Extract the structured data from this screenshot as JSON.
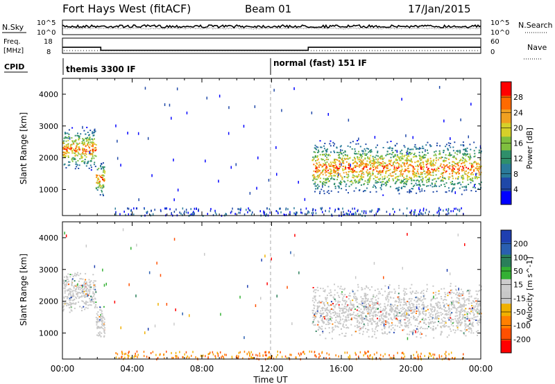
{
  "header": {
    "station": "Fort Hays West (fitACF)",
    "beam": "Beam 01",
    "date": "17/Jan/2015"
  },
  "strip_labels": {
    "nsky": "N.Sky",
    "nsearch": "N.Search",
    "freq_top": "Freq.",
    "freq_unit": "[MHz]",
    "nave": "Nave",
    "cpid": "CPID"
  },
  "strip_ticks": {
    "nsky_top": "10^5",
    "nsky_bottom": "10^0",
    "nsearch_top": "10^5",
    "nsearch_bottom": "10^0",
    "freq_top": "18",
    "freq_bottom": "8",
    "nave_top": "60",
    "nave_bottom": "0"
  },
  "cpid": {
    "modes": [
      {
        "label": "themis 3300 IF",
        "start_hour": 0.0
      },
      {
        "label": "normal (fast) 151 IF",
        "start_hour": 12.0
      }
    ]
  },
  "freq_steps": {
    "hours": [
      0,
      2.2,
      2.2,
      14.1,
      14.1,
      24
    ],
    "mhz": [
      12.0,
      12.0,
      10.0,
      10.0,
      12.0,
      12.0
    ]
  },
  "chart_data": [
    {
      "type": "heatmap",
      "name": "Power",
      "ylabel": "Slant Range [km]",
      "xlabel": "Time UT",
      "ylim": [
        180,
        4500
      ],
      "xlim": [
        0,
        24
      ],
      "yticks": [
        1000,
        2000,
        3000,
        4000
      ],
      "xticks": [
        "00:00",
        "04:00",
        "08:00",
        "12:00",
        "16:00",
        "20:00",
        "00:00"
      ],
      "colorbar": {
        "label": "Power [dB]",
        "ticks": [
          "4",
          "8",
          "12",
          "16",
          "20",
          "24",
          "28"
        ],
        "range": [
          0,
          30
        ],
        "colors": [
          "#0000ff",
          "#1f48a8",
          "#2a7a9a",
          "#2f8f6a",
          "#7fbf3f",
          "#d6d02a",
          "#f0a020",
          "#ff6a00",
          "#ff0000"
        ]
      },
      "regions": [
        {
          "t_start": 0.0,
          "t_end": 1.9,
          "r_center": 2300,
          "r_width": 700
        },
        {
          "t_start": 1.9,
          "t_end": 2.4,
          "r_center": 1350,
          "r_width": 600
        },
        {
          "t_start": 14.3,
          "t_end": 24.0,
          "r_center": 1700,
          "r_width": 900
        }
      ]
    },
    {
      "type": "heatmap",
      "name": "Velocity",
      "ylabel": "Slant Range [km]",
      "xlabel": "Time UT",
      "ylim": [
        180,
        4500
      ],
      "xlim": [
        0,
        24
      ],
      "yticks": [
        1000,
        2000,
        3000,
        4000
      ],
      "xticks": [
        "00:00",
        "04:00",
        "08:00",
        "12:00",
        "16:00",
        "20:00",
        "00:00"
      ],
      "colorbar": {
        "label": "Velocity [m s^-1]",
        "ticks": [
          "200",
          "100",
          "50",
          "15",
          "-15",
          "-50",
          "-100",
          "-200"
        ],
        "range": [
          -250,
          250
        ],
        "colors": [
          "#1f3fb0",
          "#2a5fb0",
          "#2a7f5a",
          "#33b033",
          "#cccccc",
          "#c8c8c8",
          "#f0b000",
          "#ff8000",
          "#ff5000",
          "#ff0000"
        ]
      },
      "regions": [
        {
          "t_start": 0.0,
          "t_end": 1.9,
          "r_center": 2300,
          "r_width": 700
        },
        {
          "t_start": 1.9,
          "t_end": 2.4,
          "r_center": 1350,
          "r_width": 600
        },
        {
          "t_start": 14.3,
          "t_end": 24.0,
          "r_center": 1700,
          "r_width": 900
        }
      ]
    }
  ],
  "xaxis_title": "Time UT"
}
